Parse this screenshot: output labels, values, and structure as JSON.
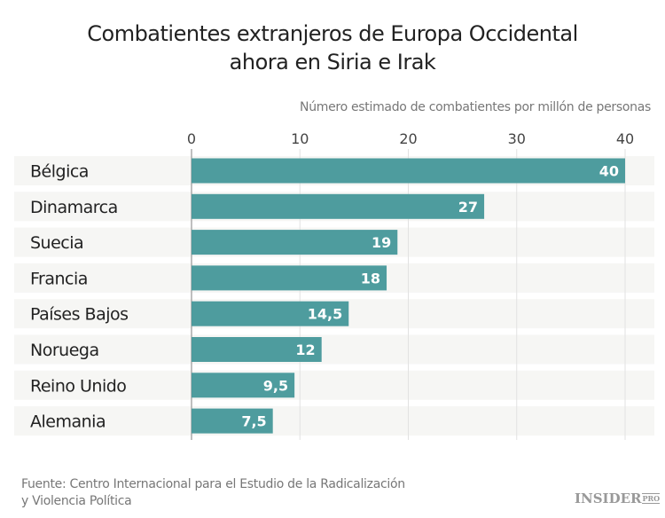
{
  "chart_data": {
    "type": "bar",
    "orientation": "horizontal",
    "title": "Combatientes extranjeros de Europa Occidental ahora en Siria e Irak",
    "title_lines": [
      "Combatientes extranjeros de Europa Occidental",
      "ahora en Siria e Irak"
    ],
    "xlabel": "Número estimado de combatientes por millón de personas",
    "categories": [
      "Bélgica",
      "Dinamarca",
      "Suecia",
      "Francia",
      "Países Bajos",
      "Noruega",
      "Reino Unido",
      "Alemania"
    ],
    "values": [
      40,
      27,
      19,
      18,
      14.5,
      12,
      9.5,
      7.5
    ],
    "data_labels": [
      "40",
      "27",
      "19",
      "18",
      "14,5",
      "12",
      "9,5",
      "7,5"
    ],
    "xlim": [
      0,
      40
    ],
    "xticks": [
      0,
      10,
      20,
      30,
      40
    ],
    "xtick_labels": [
      "0",
      "10",
      "20",
      "30",
      "40"
    ],
    "grid": true,
    "bar_color": "#4a9a9c",
    "band_color": "#f6f6f4"
  },
  "source": [
    "Fuente: Centro Internacional para el Estudio de la Radicalización",
    "y Violencia Política"
  ],
  "logo": {
    "text": "INSIDER",
    "suffix": "PRO"
  }
}
